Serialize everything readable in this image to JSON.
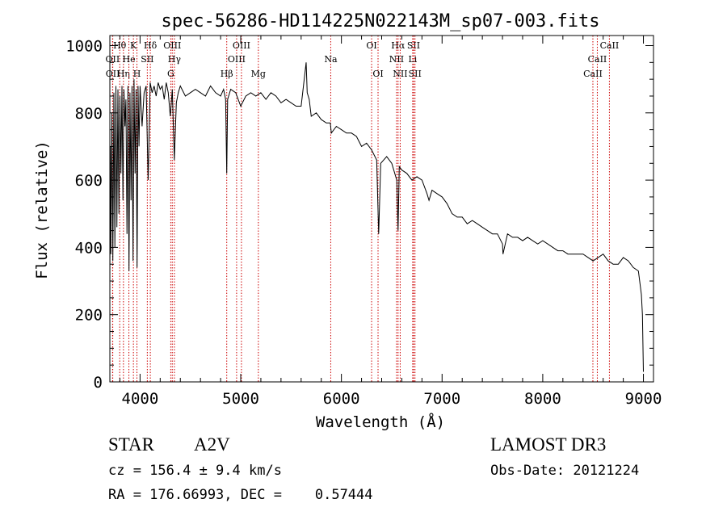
{
  "chart_data": {
    "type": "line",
    "title": "spec-56286-HD114225N022143M_sp07-003.fits",
    "xlabel": "Wavelength (Å)",
    "ylabel": "Flux (relative)",
    "xlim": [
      3700,
      9100
    ],
    "ylim": [
      0,
      1030
    ],
    "xticks": [
      4000,
      5000,
      6000,
      7000,
      8000,
      9000
    ],
    "yticks": [
      0,
      200,
      400,
      600,
      800,
      1000
    ],
    "grid": false,
    "series": [
      {
        "x": [
          3700,
          3705,
          3710,
          3720,
          3730,
          3740,
          3750,
          3760,
          3770,
          3780,
          3790,
          3800,
          3810,
          3820,
          3830,
          3840,
          3850,
          3860,
          3870,
          3880,
          3890,
          3900,
          3910,
          3920,
          3930,
          3940,
          3950,
          3960,
          3970,
          3980,
          3990,
          4000,
          4020,
          4040,
          4060,
          4080,
          4100,
          4120,
          4140,
          4160,
          4180,
          4200,
          4220,
          4240,
          4260,
          4280,
          4300,
          4320,
          4340,
          4360,
          4380,
          4400,
          4450,
          4500,
          4550,
          4600,
          4650,
          4700,
          4750,
          4800,
          4830,
          4850,
          4861,
          4870,
          4900,
          4950,
          5000,
          5050,
          5100,
          5150,
          5200,
          5250,
          5300,
          5350,
          5400,
          5450,
          5500,
          5550,
          5600,
          5650,
          5660,
          5680,
          5700,
          5750,
          5800,
          5850,
          5890,
          5900,
          5950,
          6000,
          6050,
          6100,
          6150,
          6200,
          6250,
          6300,
          6350,
          6370,
          6390,
          6450,
          6500,
          6550,
          6563,
          6575,
          6600,
          6650,
          6700,
          6750,
          6800,
          6850,
          6870,
          6900,
          6950,
          7000,
          7050,
          7100,
          7150,
          7200,
          7250,
          7300,
          7350,
          7400,
          7450,
          7500,
          7550,
          7600,
          7605,
          7650,
          7700,
          7750,
          7800,
          7850,
          7900,
          7950,
          8000,
          8050,
          8100,
          8150,
          8200,
          8250,
          8300,
          8350,
          8400,
          8450,
          8500,
          8550,
          8600,
          8650,
          8700,
          8750,
          8800,
          8850,
          8900,
          8950,
          8980,
          8990,
          9000
        ],
        "y": [
          300,
          700,
          380,
          800,
          360,
          860,
          400,
          880,
          460,
          870,
          500,
          850,
          620,
          880,
          540,
          870,
          760,
          840,
          440,
          880,
          330,
          860,
          540,
          880,
          360,
          900,
          620,
          870,
          340,
          880,
          700,
          880,
          760,
          860,
          880,
          600,
          890,
          860,
          880,
          850,
          890,
          870,
          880,
          840,
          890,
          860,
          790,
          870,
          660,
          830,
          860,
          880,
          850,
          860,
          870,
          860,
          850,
          880,
          860,
          850,
          870,
          840,
          620,
          840,
          870,
          860,
          820,
          850,
          860,
          850,
          860,
          840,
          860,
          850,
          830,
          840,
          830,
          820,
          820,
          950,
          860,
          840,
          790,
          800,
          780,
          770,
          770,
          740,
          760,
          750,
          740,
          740,
          730,
          700,
          710,
          690,
          660,
          440,
          650,
          670,
          650,
          600,
          450,
          640,
          630,
          620,
          600,
          610,
          600,
          560,
          540,
          570,
          560,
          550,
          530,
          500,
          490,
          490,
          470,
          480,
          470,
          460,
          450,
          440,
          440,
          410,
          380,
          440,
          430,
          430,
          420,
          430,
          420,
          410,
          420,
          410,
          400,
          390,
          390,
          380,
          380,
          380,
          380,
          370,
          360,
          370,
          380,
          360,
          350,
          350,
          370,
          360,
          340,
          330,
          260,
          200,
          30
        ]
      }
    ],
    "line_markers": [
      {
        "label": "Hθ",
        "x": 3798,
        "row": 0
      },
      {
        "label": "OII",
        "x": 3727,
        "row": 1
      },
      {
        "label": "OII",
        "x": 3729,
        "row": 2
      },
      {
        "label": "Hη",
        "x": 3835,
        "row": 2
      },
      {
        "label": "He",
        "x": 3889,
        "row": 1
      },
      {
        "label": "K",
        "x": 3934,
        "row": 0
      },
      {
        "label": "H",
        "x": 3969,
        "row": 2
      },
      {
        "label": "SII",
        "x": 4072,
        "row": 1
      },
      {
        "label": "Hδ",
        "x": 4102,
        "row": 0
      },
      {
        "label": "OIII",
        "x": 4320,
        "row": 0
      },
      {
        "label": "Hγ",
        "x": 4341,
        "row": 1
      },
      {
        "label": "G",
        "x": 4305,
        "row": 2
      },
      {
        "label": "Hβ",
        "x": 4861,
        "row": 2
      },
      {
        "label": "OIII",
        "x": 5007,
        "row": 0
      },
      {
        "label": "OIII",
        "x": 4959,
        "row": 1
      },
      {
        "label": "Mg",
        "x": 5175,
        "row": 2
      },
      {
        "label": "Na",
        "x": 5894,
        "row": 1
      },
      {
        "label": "OI",
        "x": 6300,
        "row": 0
      },
      {
        "label": "OI",
        "x": 6364,
        "row": 2
      },
      {
        "label": "Hα",
        "x": 6563,
        "row": 0
      },
      {
        "label": "NII",
        "x": 6548,
        "row": 1
      },
      {
        "label": "NII",
        "x": 6584,
        "row": 2
      },
      {
        "label": "SII",
        "x": 6717,
        "row": 0
      },
      {
        "label": "Li",
        "x": 6708,
        "row": 1
      },
      {
        "label": "SII",
        "x": 6731,
        "row": 2
      },
      {
        "label": "CaII",
        "x": 8662,
        "row": 0
      },
      {
        "label": "CaII",
        "x": 8542,
        "row": 1
      },
      {
        "label": "CaII",
        "x": 8498,
        "row": 2
      }
    ]
  },
  "info": {
    "class": "STAR",
    "subclass": "A2V",
    "survey": "LAMOST DR3",
    "cz": "cz = 156.4 ± 9.4 km/s",
    "obs_date": "Obs-Date: 20121224",
    "coords": "RA = 176.66993, DEC =    0.57444"
  }
}
